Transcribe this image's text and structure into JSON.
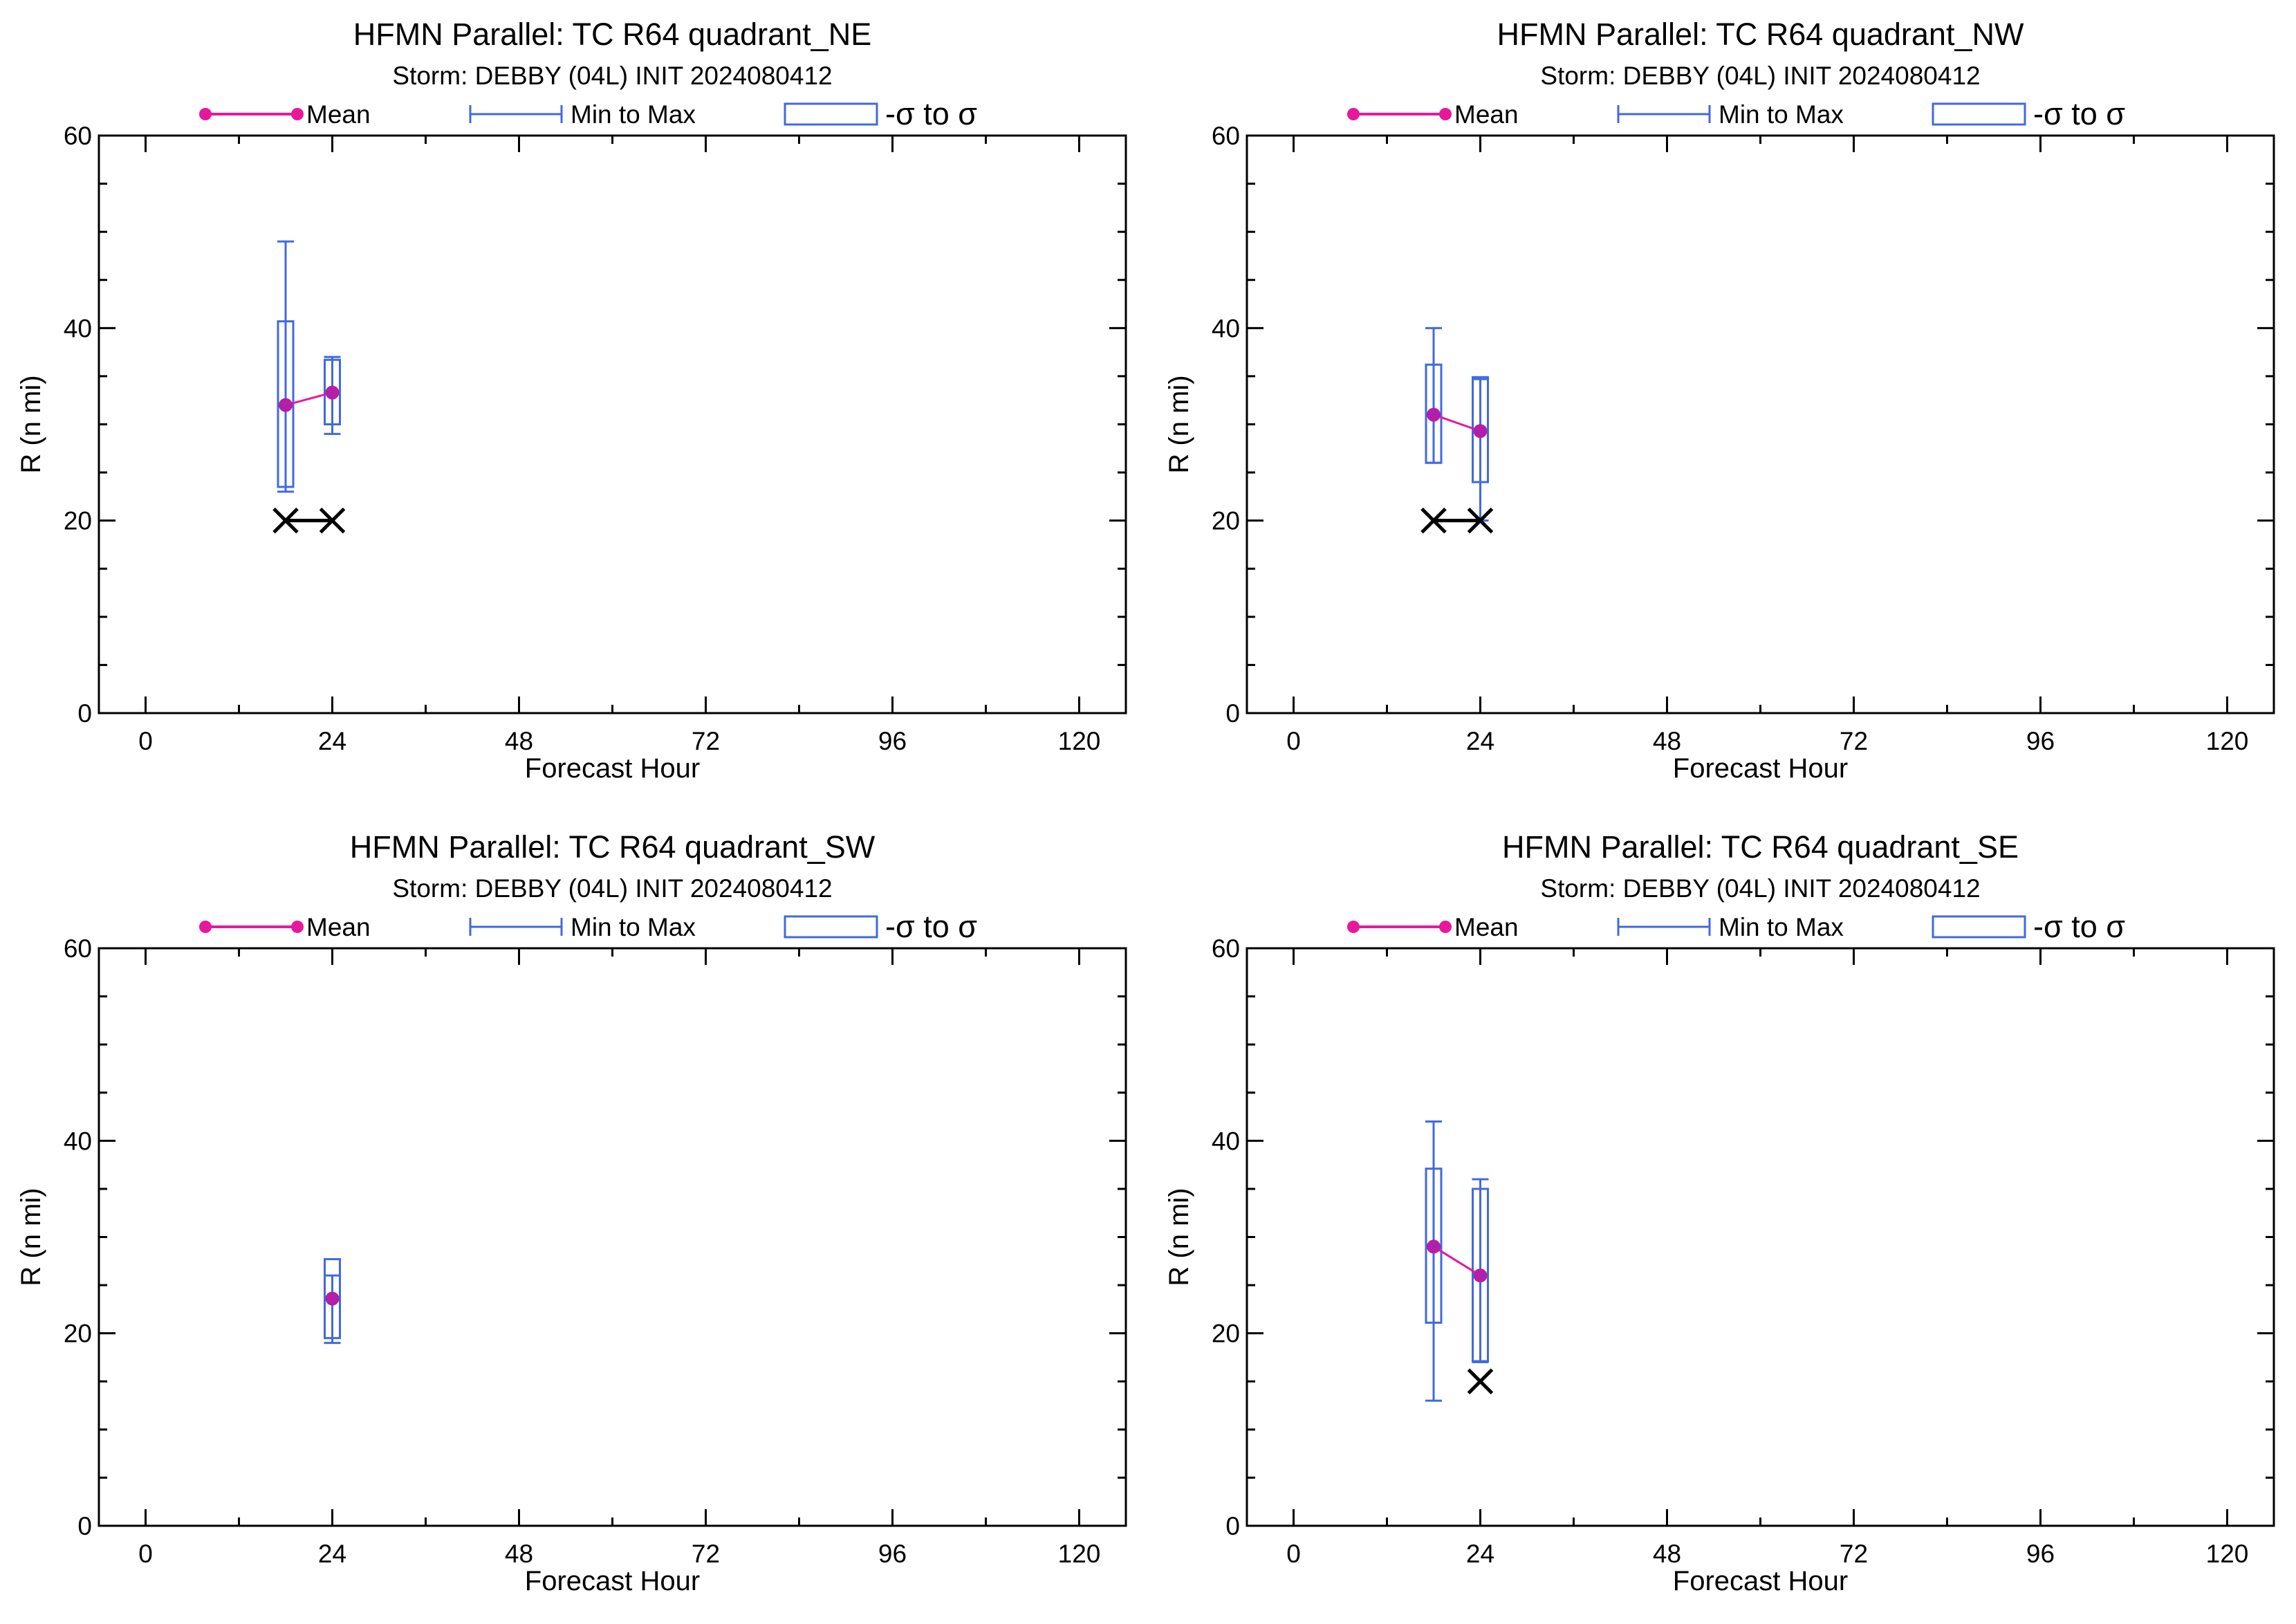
{
  "colors": {
    "mean": "#e6199b",
    "mean_point": "#b41ea8",
    "range": "#4169e1",
    "axis": "#000000",
    "obs": "#000000"
  },
  "legend": {
    "mean": "Mean",
    "minmax": "Min to Max",
    "sigma": "-σ to σ"
  },
  "chart_data": [
    {
      "type": "box",
      "title": "HFMN Parallel: TC  R64 quadrant_NE",
      "subtitle": "Storm: DEBBY (04L) INIT 2024080412",
      "xlabel": "Forecast Hour",
      "ylabel": "R (n mi)",
      "xlim": [
        -6,
        126
      ],
      "ylim": [
        0,
        60
      ],
      "xticks": [
        0,
        24,
        48,
        72,
        96,
        120
      ],
      "yticks": [
        0,
        20,
        40,
        60
      ],
      "grid": false,
      "legend_position": "top",
      "boxes": [
        {
          "x": 18,
          "min": 23,
          "max": 49,
          "sigma_low": 23.5,
          "sigma_high": 40.7,
          "mean": 32
        },
        {
          "x": 24,
          "min": 29,
          "max": 37,
          "sigma_low": 30,
          "sigma_high": 36.7,
          "mean": 33.3
        }
      ],
      "observed": [
        {
          "x": 18,
          "y": 20
        },
        {
          "x": 24,
          "y": 20
        }
      ]
    },
    {
      "type": "box",
      "title": "HFMN Parallel: TC  R64 quadrant_NW",
      "subtitle": "Storm: DEBBY (04L) INIT 2024080412",
      "xlabel": "Forecast Hour",
      "ylabel": "R (n mi)",
      "xlim": [
        -6,
        126
      ],
      "ylim": [
        0,
        60
      ],
      "xticks": [
        0,
        24,
        48,
        72,
        96,
        120
      ],
      "yticks": [
        0,
        20,
        40,
        60
      ],
      "grid": false,
      "legend_position": "top",
      "boxes": [
        {
          "x": 18,
          "min": 26,
          "max": 40,
          "sigma_low": 26,
          "sigma_high": 36.2,
          "mean": 31
        },
        {
          "x": 24,
          "min": 20,
          "max": 34.7,
          "sigma_low": 24,
          "sigma_high": 34.9,
          "mean": 29.3
        }
      ],
      "observed": [
        {
          "x": 18,
          "y": 20
        },
        {
          "x": 24,
          "y": 20
        }
      ]
    },
    {
      "type": "box",
      "title": "HFMN Parallel: TC  R64 quadrant_SW",
      "subtitle": "Storm: DEBBY (04L) INIT 2024080412",
      "xlabel": "Forecast Hour",
      "ylabel": "R (n mi)",
      "xlim": [
        -6,
        126
      ],
      "ylim": [
        0,
        60
      ],
      "xticks": [
        0,
        24,
        48,
        72,
        96,
        120
      ],
      "yticks": [
        0,
        20,
        40,
        60
      ],
      "grid": false,
      "legend_position": "top",
      "boxes": [
        {
          "x": 24,
          "min": 19,
          "max": 26,
          "sigma_low": 19.5,
          "sigma_high": 27.7,
          "mean": 23.6
        }
      ],
      "observed": []
    },
    {
      "type": "box",
      "title": "HFMN Parallel: TC  R64 quadrant_SE",
      "subtitle": "Storm: DEBBY (04L) INIT 2024080412",
      "xlabel": "Forecast Hour",
      "ylabel": "R (n mi)",
      "xlim": [
        -6,
        126
      ],
      "ylim": [
        0,
        60
      ],
      "xticks": [
        0,
        24,
        48,
        72,
        96,
        120
      ],
      "yticks": [
        0,
        20,
        40,
        60
      ],
      "grid": false,
      "legend_position": "top",
      "boxes": [
        {
          "x": 18,
          "min": 13,
          "max": 42,
          "sigma_low": 21.1,
          "sigma_high": 37.1,
          "mean": 29
        },
        {
          "x": 24,
          "min": 17,
          "max": 36,
          "sigma_low": 17.1,
          "sigma_high": 35,
          "mean": 26
        }
      ],
      "observed": [
        {
          "x": 24,
          "y": 15
        }
      ]
    }
  ]
}
